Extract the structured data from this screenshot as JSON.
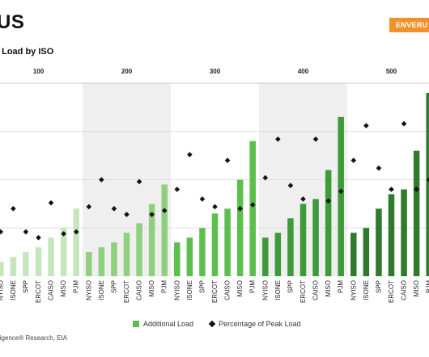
{
  "header": {
    "title": "US",
    "subtitle": "l Load by ISO",
    "brand": "ENVERU"
  },
  "legend": {
    "bar_label": "Additional Load",
    "marker_label": "Percentage of Peak Load"
  },
  "source": "ligence® Research, EIA",
  "colors": {
    "shade": "#efefef",
    "grid": "#dddddd",
    "marker": "#111111",
    "groups": [
      "#c5e6bd",
      "#8fd07f",
      "#5cbf4d",
      "#3f9a3a",
      "#2f7a2c"
    ]
  },
  "chart_data": {
    "type": "bar",
    "title": "",
    "categories": [
      "NYISO",
      "ISONE",
      "SPP",
      "ERCOT",
      "CAISO",
      "MISO",
      "PJM"
    ],
    "groups": [
      {
        "label": "100",
        "additional_load": [
          3,
          4,
          5,
          6,
          8,
          10,
          14
        ],
        "pct_peak_load": [
          23,
          35,
          23,
          20,
          38,
          22,
          23
        ]
      },
      {
        "label": "200",
        "additional_load": [
          5,
          6,
          7,
          9,
          11,
          15,
          19
        ],
        "pct_peak_load": [
          36,
          50,
          35,
          32,
          49,
          32,
          34
        ]
      },
      {
        "label": "300",
        "additional_load": [
          7,
          8,
          10,
          13,
          14,
          20,
          28
        ],
        "pct_peak_load": [
          45,
          63,
          40,
          36,
          60,
          35,
          37
        ]
      },
      {
        "label": "400",
        "additional_load": [
          8,
          9,
          12,
          15,
          16,
          22,
          33
        ],
        "pct_peak_load": [
          51,
          71,
          47,
          40,
          71,
          39,
          44
        ]
      },
      {
        "label": "500",
        "additional_load": [
          9,
          10,
          14,
          17,
          18,
          26,
          38
        ],
        "pct_peak_load": [
          60,
          78,
          56,
          45,
          79,
          45,
          50
        ]
      }
    ],
    "bar_ylim": [
      0,
      40
    ],
    "marker_ylim": [
      0,
      100
    ],
    "grid": true,
    "legend_position": "bottom"
  }
}
